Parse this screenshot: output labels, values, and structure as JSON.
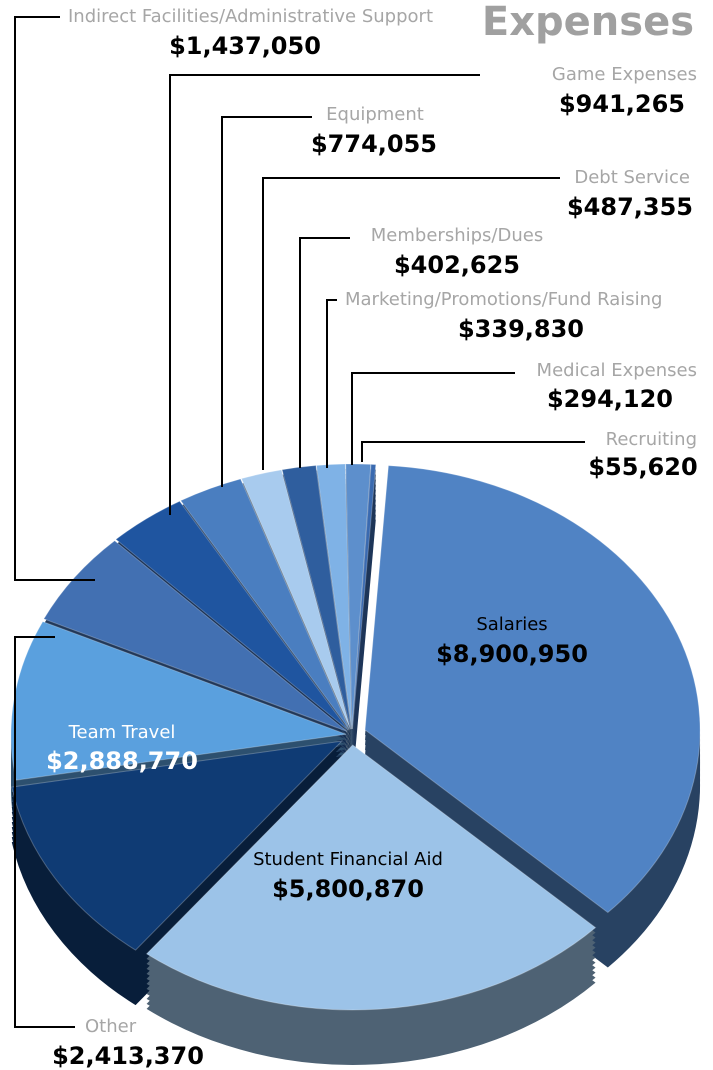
{
  "chart_data": {
    "type": "pie",
    "title": "Expenses",
    "categories": [
      "Salaries",
      "Student Financial Aid",
      "Team Travel",
      "Other",
      "Indirect Facilities/Administrative Support",
      "Game Expenses",
      "Equipment",
      "Debt Service",
      "Memberships/Dues",
      "Marketing/Promotions/Fund Raising",
      "Medical Expenses",
      "Recruiting"
    ],
    "values": [
      8900950,
      5800870,
      2888770,
      2413370,
      1437050,
      941265,
      774055,
      487355,
      402625,
      339830,
      294120,
      55620
    ],
    "value_labels": [
      "$8,900,950",
      "$5,800,870",
      "$2,888,770",
      "$2,413,370",
      "$1,437,050",
      "$941,265",
      "$774,055",
      "$487,355",
      "$402,625",
      "$339,830",
      "$294,120",
      "$55,620"
    ],
    "colors": [
      "#5083c4",
      "#9cc3e8",
      "#0f3b74",
      "#5aa0de",
      "#4270b2",
      "#1f55a0",
      "#4a7ec0",
      "#a8cbee",
      "#2f5e9e",
      "#7fb2e6",
      "#5d8fcc",
      "#3a6ab0"
    ]
  }
}
